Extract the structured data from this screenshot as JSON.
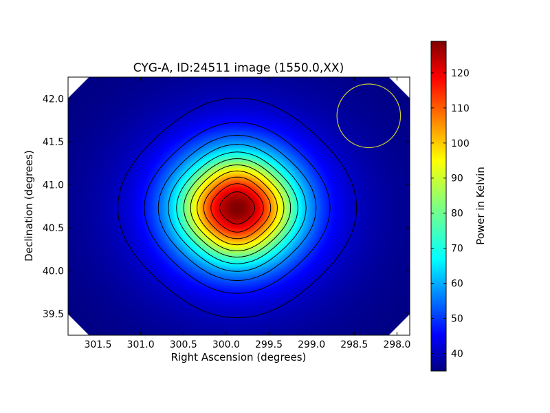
{
  "chart_data": {
    "type": "heatmap",
    "title": "CYG-A, ID:24511 image (1550.0,XX)",
    "xlabel": "Right Ascension (degrees)",
    "ylabel": "Declination (degrees)",
    "xlim": [
      301.85,
      297.85
    ],
    "ylim": [
      39.25,
      42.25
    ],
    "xticks": [
      301.5,
      301.0,
      300.5,
      300.0,
      299.5,
      299.0,
      298.5,
      298.0
    ],
    "xtick_labels": [
      "301.5",
      "301.0",
      "300.5",
      "300.0",
      "299.5",
      "299.0",
      "298.5",
      "298.0"
    ],
    "yticks": [
      39.5,
      40.0,
      40.5,
      41.0,
      41.5,
      42.0
    ],
    "ytick_labels": [
      "39.5",
      "40.0",
      "40.5",
      "41.0",
      "41.5",
      "42.0"
    ],
    "colormap": "jet",
    "source": {
      "ra": 299.87,
      "dec": 40.73,
      "peak": 129,
      "background": 35
    },
    "contour_levels": [
      42,
      50,
      58,
      66,
      74,
      82,
      90,
      98,
      106,
      114,
      122
    ],
    "contour_color": "#000000",
    "beam_circle": {
      "ra": 298.33,
      "dec": 41.8,
      "radius_deg": 0.37,
      "color": "#cccc33"
    },
    "colorbar": {
      "label": "Power in Kelvin",
      "min": 35,
      "max": 129,
      "ticks": [
        40,
        50,
        60,
        70,
        80,
        90,
        100,
        110,
        120
      ],
      "tick_labels": [
        "40",
        "50",
        "60",
        "70",
        "80",
        "90",
        "100",
        "110",
        "120"
      ]
    }
  }
}
